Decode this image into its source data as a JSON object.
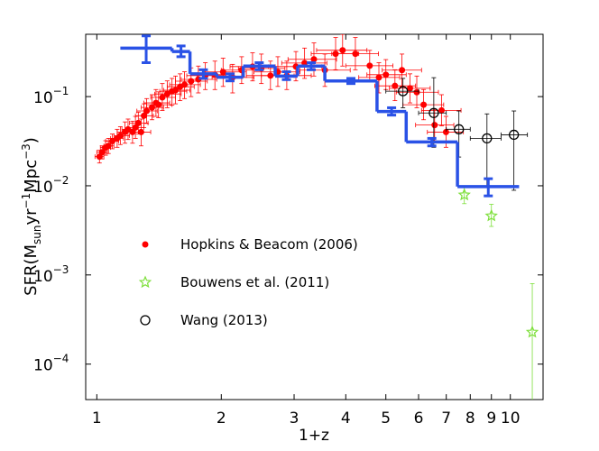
{
  "chart_data": {
    "type": "scatter",
    "xlabel": "1+z",
    "ylabel": [
      {
        "text": "SFR(M",
        "shift": "normal"
      },
      {
        "text": "sun",
        "shift": "sub"
      },
      {
        "text": "yr",
        "shift": "normal"
      },
      {
        "text": "−1",
        "shift": "sup"
      },
      {
        "text": "Mpc",
        "shift": "normal"
      },
      {
        "text": "−3",
        "shift": "sup"
      },
      {
        "text": ")",
        "shift": "normal"
      }
    ],
    "xscale": "log",
    "yscale": "log",
    "xlim": [
      0.94,
      12
    ],
    "ylim": [
      4e-05,
      0.5
    ],
    "xticks": [
      1,
      2,
      3,
      4,
      5,
      6,
      7,
      8,
      9,
      10
    ],
    "yticks": [
      {
        "value": 0.0001,
        "label": "10",
        "exponent": "−4"
      },
      {
        "value": 0.001,
        "label": "10",
        "exponent": "−3"
      },
      {
        "value": 0.01,
        "label": "10",
        "exponent": "−2"
      },
      {
        "value": 0.1,
        "label": "10",
        "exponent": "−1"
      }
    ],
    "series": [
      {
        "name": "Hopkins & Beacom (2006)",
        "color": "#ff0000",
        "marker": "circle-filled",
        "x": [
          1.015,
          1.03,
          1.05,
          1.067,
          1.09,
          1.12,
          1.14,
          1.17,
          1.19,
          1.22,
          1.24,
          1.26,
          1.28,
          1.3,
          1.32,
          1.36,
          1.39,
          1.41,
          1.44,
          1.48,
          1.52,
          1.55,
          1.59,
          1.63,
          1.69,
          1.76,
          1.83,
          1.93,
          2.02,
          2.13,
          2.24,
          2.38,
          2.5,
          2.63,
          2.74,
          2.88,
          3.03,
          3.18,
          3.35,
          3.56,
          3.78,
          3.93,
          4.22,
          4.57,
          4.81,
          5.0,
          5.26,
          5.47,
          5.72,
          5.94,
          6.17,
          6.56,
          6.82,
          6.99
        ],
        "values": [
          0.0212,
          0.0238,
          0.0268,
          0.028,
          0.0316,
          0.034,
          0.0365,
          0.04,
          0.043,
          0.04,
          0.045,
          0.0506,
          0.04,
          0.061,
          0.069,
          0.0755,
          0.085,
          0.081,
          0.098,
          0.107,
          0.115,
          0.118,
          0.129,
          0.136,
          0.149,
          0.156,
          0.172,
          0.176,
          0.189,
          0.164,
          0.198,
          0.217,
          0.207,
          0.172,
          0.189,
          0.172,
          0.217,
          0.238,
          0.262,
          0.198,
          0.302,
          0.331,
          0.302,
          0.222,
          0.164,
          0.176,
          0.132,
          0.198,
          0.124,
          0.112,
          0.081,
          0.048,
          0.07,
          0.04
        ],
        "x_lower": [
          0.99,
          1.0,
          1.02,
          1.04,
          1.05,
          1.08,
          1.1,
          1.12,
          1.15,
          1.17,
          1.19,
          1.2,
          1.22,
          1.24,
          1.25,
          1.28,
          1.3,
          1.32,
          1.35,
          1.38,
          1.42,
          1.45,
          1.48,
          1.5,
          1.55,
          1.6,
          1.65,
          1.75,
          1.8,
          1.9,
          2.0,
          2.1,
          2.2,
          2.3,
          2.4,
          2.5,
          2.6,
          2.8,
          2.9,
          3.1,
          3.3,
          3.4,
          3.7,
          4.0,
          4.3,
          4.5,
          4.7,
          4.9,
          5.1,
          5.3,
          5.5,
          5.9,
          6.1,
          6.3
        ],
        "x_upper": [
          1.04,
          1.06,
          1.08,
          1.1,
          1.13,
          1.16,
          1.2,
          1.22,
          1.24,
          1.28,
          1.3,
          1.33,
          1.35,
          1.37,
          1.4,
          1.45,
          1.5,
          1.52,
          1.55,
          1.6,
          1.65,
          1.68,
          1.72,
          1.78,
          1.85,
          1.95,
          2.05,
          2.15,
          2.3,
          2.4,
          2.5,
          2.7,
          2.85,
          3.0,
          3.1,
          3.3,
          3.5,
          3.6,
          3.8,
          4.1,
          4.3,
          4.5,
          4.8,
          5.2,
          5.4,
          5.6,
          5.9,
          6.1,
          6.4,
          6.7,
          6.9,
          7.3,
          7.6,
          7.7
        ],
        "y_lower": [
          0.018,
          0.02,
          0.022,
          0.023,
          0.026,
          0.027,
          0.029,
          0.03,
          0.033,
          0.03,
          0.034,
          0.038,
          0.028,
          0.045,
          0.05,
          0.055,
          0.06,
          0.058,
          0.07,
          0.075,
          0.08,
          0.083,
          0.09,
          0.095,
          0.1,
          0.11,
          0.12,
          0.12,
          0.13,
          0.11,
          0.14,
          0.15,
          0.14,
          0.12,
          0.13,
          0.12,
          0.15,
          0.16,
          0.17,
          0.13,
          0.2,
          0.22,
          0.2,
          0.15,
          0.11,
          0.12,
          0.09,
          0.13,
          0.085,
          0.075,
          0.055,
          0.032,
          0.047,
          0.027
        ],
        "y_upper": [
          0.025,
          0.028,
          0.032,
          0.034,
          0.038,
          0.043,
          0.046,
          0.052,
          0.056,
          0.053,
          0.06,
          0.067,
          0.056,
          0.083,
          0.095,
          0.105,
          0.12,
          0.113,
          0.14,
          0.15,
          0.16,
          0.17,
          0.18,
          0.19,
          0.21,
          0.22,
          0.24,
          0.25,
          0.27,
          0.23,
          0.28,
          0.31,
          0.3,
          0.25,
          0.28,
          0.25,
          0.32,
          0.35,
          0.4,
          0.3,
          0.46,
          0.5,
          0.46,
          0.33,
          0.24,
          0.26,
          0.2,
          0.3,
          0.18,
          0.17,
          0.12,
          0.072,
          0.105,
          0.06
        ]
      },
      {
        "name": "Bouwens et al. (2011)",
        "color": "#7ddf3a",
        "marker": "star",
        "x": [
          7.74,
          9.0,
          11.3
        ],
        "values": [
          0.0079,
          0.0046,
          0.000228
        ],
        "y_lower": [
          0.0063,
          0.0035,
          1e-05
        ],
        "y_upper": [
          0.0098,
          0.0062,
          0.0008
        ]
      },
      {
        "name": "Wang (2013)",
        "color": "#000000",
        "marker": "circle-open",
        "x": [
          5.5,
          6.53,
          7.51,
          8.78,
          10.2
        ],
        "values": [
          0.115,
          0.0655,
          0.043,
          0.034,
          0.0373
        ],
        "x_lower": [
          5.0,
          6.0,
          7.0,
          8.0,
          9.5
        ],
        "x_upper": [
          6.0,
          7.0,
          8.0,
          9.5,
          11.0
        ],
        "y_lower": [
          0.075,
          0.027,
          0.021,
          0.0098,
          0.0089
        ],
        "y_upper": [
          0.16,
          0.163,
          0.069,
          0.064,
          0.069
        ]
      },
      {
        "color": "#2a52e6",
        "kind": "step",
        "edges": [
          1.14,
          1.52,
          1.68,
          1.95,
          2.26,
          2.7,
          3.06,
          3.56,
          4.76,
          5.6,
          7.45,
          10.5
        ],
        "values": [
          0.35,
          0.32,
          0.18,
          0.165,
          0.22,
          0.17,
          0.22,
          0.15,
          0.068,
          0.031,
          0.0098
        ],
        "y_lower": [
          0.24,
          0.28,
          0.16,
          0.15,
          0.2,
          0.155,
          0.2,
          0.14,
          0.062,
          0.028,
          0.0077
        ],
        "y_upper": [
          0.48,
          0.37,
          0.2,
          0.18,
          0.24,
          0.19,
          0.24,
          0.16,
          0.075,
          0.034,
          0.012
        ]
      }
    ]
  }
}
